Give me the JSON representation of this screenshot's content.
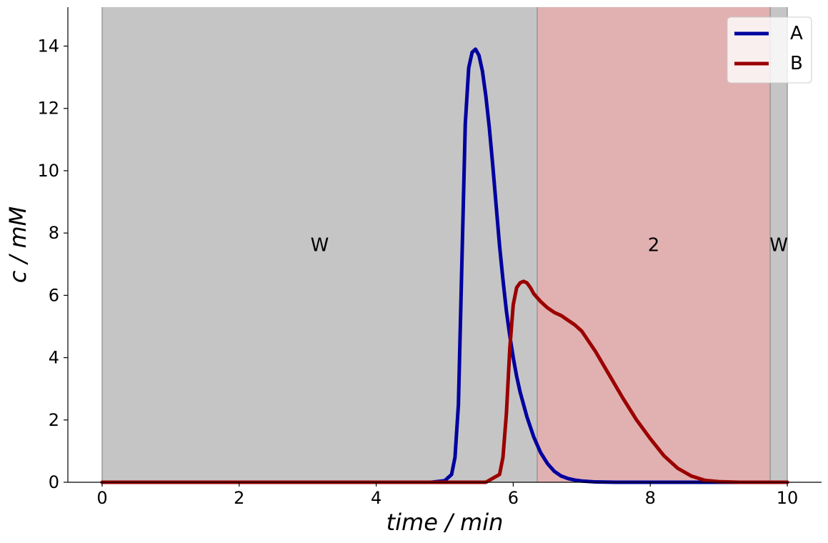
{
  "chart_data": {
    "type": "line",
    "title": "",
    "xlabel": "time / min",
    "ylabel": "c / mM",
    "xlim": [
      -0.5,
      10.5
    ],
    "ylim": [
      0,
      15.25
    ],
    "xticks": [
      0,
      2,
      4,
      6,
      8,
      10
    ],
    "yticks": [
      0,
      2,
      4,
      6,
      8,
      10,
      12,
      14
    ],
    "grid": false,
    "legend_position": "top-right",
    "regions": [
      {
        "label": "W",
        "start": 0,
        "end": 6.35,
        "color": "#c5c5c5"
      },
      {
        "label": "2",
        "start": 6.35,
        "end": 9.75,
        "color": "#e1b1b1"
      },
      {
        "label": "W",
        "start": 9.75,
        "end": 10.0,
        "color": "#c5c5c5"
      }
    ],
    "region_label_y": 7.6,
    "series": [
      {
        "name": "A",
        "color": "#00009f",
        "x": [
          0,
          4.8,
          5.0,
          5.1,
          5.15,
          5.2,
          5.25,
          5.3,
          5.35,
          5.4,
          5.45,
          5.5,
          5.55,
          5.6,
          5.65,
          5.7,
          5.75,
          5.8,
          5.85,
          5.9,
          5.95,
          6.0,
          6.05,
          6.1,
          6.2,
          6.3,
          6.4,
          6.5,
          6.6,
          6.7,
          6.8,
          6.9,
          7.0,
          7.2,
          7.5,
          8.0,
          10.0
        ],
        "y": [
          0,
          0,
          0.05,
          0.25,
          0.8,
          2.5,
          7.0,
          11.5,
          13.3,
          13.8,
          13.9,
          13.7,
          13.2,
          12.4,
          11.4,
          10.2,
          8.9,
          7.6,
          6.5,
          5.5,
          4.7,
          4.0,
          3.4,
          2.9,
          2.1,
          1.45,
          0.95,
          0.6,
          0.35,
          0.2,
          0.12,
          0.07,
          0.04,
          0.01,
          0,
          0,
          0
        ]
      },
      {
        "name": "B",
        "color": "#9b0000",
        "x": [
          0,
          5.6,
          5.8,
          5.85,
          5.9,
          5.95,
          6.0,
          6.05,
          6.1,
          6.15,
          6.2,
          6.25,
          6.3,
          6.4,
          6.5,
          6.6,
          6.7,
          6.8,
          6.9,
          7.0,
          7.2,
          7.4,
          7.6,
          7.8,
          8.0,
          8.2,
          8.4,
          8.6,
          8.8,
          9.0,
          9.3,
          10.0
        ],
        "y": [
          0,
          0,
          0.25,
          0.8,
          2.2,
          4.3,
          5.7,
          6.25,
          6.4,
          6.45,
          6.4,
          6.25,
          6.05,
          5.8,
          5.6,
          5.45,
          5.35,
          5.2,
          5.05,
          4.85,
          4.2,
          3.45,
          2.7,
          2.0,
          1.4,
          0.85,
          0.45,
          0.2,
          0.06,
          0.02,
          0,
          0
        ]
      }
    ]
  }
}
